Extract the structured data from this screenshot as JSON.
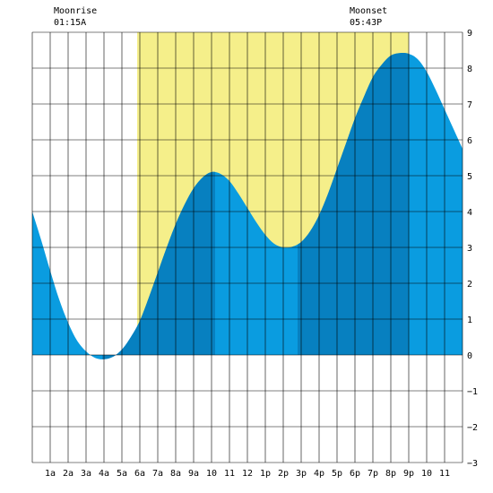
{
  "chart_data": {
    "type": "area",
    "title": "",
    "xlabel": "",
    "ylabel": "",
    "x_tick_labels": [
      "1a",
      "2a",
      "3a",
      "4a",
      "5a",
      "6a",
      "7a",
      "8a",
      "9a",
      "10",
      "11",
      "12",
      "1p",
      "2p",
      "3p",
      "4p",
      "5p",
      "6p",
      "7p",
      "8p",
      "9p",
      "10",
      "11"
    ],
    "y_tick_labels": [
      "9",
      "8",
      "7",
      "6",
      "5",
      "4",
      "3",
      "2",
      "1",
      "0",
      "−1",
      "−2",
      "−3"
    ],
    "xlim_hours": [
      0,
      24
    ],
    "ylim": [
      -3,
      9
    ],
    "grid": true,
    "daylight_hours": [
      5.85,
      21
    ],
    "tide_extrema": [
      {
        "type": "low",
        "hour": 3.9,
        "height": -0.12
      },
      {
        "type": "high",
        "hour": 10.2,
        "height": 5.1
      },
      {
        "type": "low",
        "hour": 14.8,
        "height": 3.0
      },
      {
        "type": "high",
        "hour": 21.0,
        "height": 8.4
      }
    ],
    "tide_series": {
      "hours": [
        0,
        0.5,
        1,
        1.5,
        2,
        2.5,
        3,
        3.5,
        4,
        4.5,
        5,
        5.5,
        6,
        6.5,
        7,
        7.5,
        8,
        8.5,
        9,
        9.5,
        10,
        10.5,
        11,
        11.5,
        12,
        12.5,
        13,
        13.5,
        14,
        14.5,
        15,
        15.5,
        16,
        16.5,
        17,
        17.5,
        18,
        18.5,
        19,
        19.5,
        20,
        20.5,
        21,
        21.5,
        22,
        22.5,
        23,
        23.5,
        24
      ],
      "heights": [
        4.0,
        3.2,
        2.35,
        1.55,
        0.9,
        0.4,
        0.1,
        -0.08,
        -0.12,
        -0.05,
        0.15,
        0.5,
        0.95,
        1.6,
        2.3,
        3.0,
        3.65,
        4.2,
        4.65,
        4.95,
        5.1,
        5.05,
        4.85,
        4.5,
        4.1,
        3.7,
        3.35,
        3.1,
        3.0,
        3.02,
        3.15,
        3.45,
        3.9,
        4.5,
        5.2,
        5.9,
        6.6,
        7.2,
        7.75,
        8.1,
        8.35,
        8.42,
        8.4,
        8.25,
        7.9,
        7.4,
        6.85,
        6.3,
        5.75
      ]
    },
    "shaded_segments": [
      [
        3.9,
        10.2
      ],
      [
        14.8,
        21.0
      ]
    ],
    "colors": {
      "daylight": "#f5ef8a",
      "tide_light": "#0a9ce0",
      "tide_dark": "#0780c0",
      "grid": "#000000"
    }
  },
  "moon": {
    "rise_label": "Moonrise",
    "rise_time": "01:15A",
    "set_label": "Moonset",
    "set_time": "05:43P"
  }
}
